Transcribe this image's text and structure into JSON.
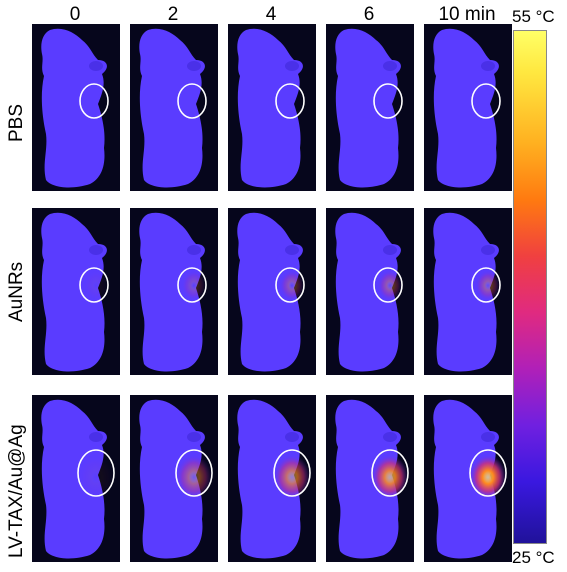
{
  "columns": [
    "0",
    "2",
    "4",
    "6",
    "10 min"
  ],
  "rows": [
    {
      "label": "PBS",
      "intensity": [
        0,
        0,
        0,
        0,
        0
      ]
    },
    {
      "label": "AuNRs",
      "intensity": [
        0.05,
        0.2,
        0.3,
        0.35,
        0.35
      ]
    },
    {
      "label": "LV-TAX/Au@Ag",
      "intensity": [
        0.05,
        0.45,
        0.65,
        0.85,
        1.0
      ]
    }
  ],
  "colorbar": {
    "max_label": "55 °C",
    "min_label": "25 °C"
  },
  "colors": {
    "background": "#06061c",
    "body": "#5a3cff",
    "ring": "#ffffff"
  }
}
